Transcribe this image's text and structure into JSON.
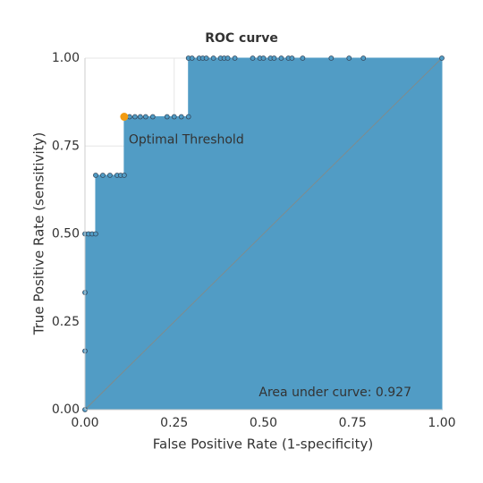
{
  "chart_data": {
    "type": "area",
    "title": "ROC curve",
    "x_label": "False Positive Rate (1-specificity)",
    "y_label": "True Positive Rate (sensitivity)",
    "x": [
      0,
      0,
      0,
      0,
      0.01,
      0.02,
      0.03,
      0.03,
      0.05,
      0.07,
      0.09,
      0.1,
      0.11,
      0.11,
      0.125,
      0.14,
      0.155,
      0.17,
      0.19,
      0.23,
      0.25,
      0.27,
      0.29,
      0.29,
      0.3,
      0.32,
      0.33,
      0.34,
      0.36,
      0.38,
      0.39,
      0.4,
      0.42,
      0.47,
      0.49,
      0.5,
      0.52,
      0.53,
      0.55,
      0.57,
      0.58,
      0.61,
      0.69,
      0.74,
      0.78,
      1
    ],
    "values": [
      0,
      0.1667,
      0.3333,
      0.5,
      0.5,
      0.5,
      0.5,
      0.6667,
      0.6667,
      0.6667,
      0.6667,
      0.6667,
      0.6667,
      0.8333,
      0.8333,
      0.8333,
      0.8333,
      0.8333,
      0.8333,
      0.8333,
      0.8333,
      0.8333,
      0.8333,
      1,
      1,
      1,
      1,
      1,
      1,
      1,
      1,
      1,
      1,
      1,
      1,
      1,
      1,
      1,
      1,
      1,
      1,
      1,
      1,
      1,
      1,
      1
    ],
    "color": "#519cc5",
    "optimal_point": {
      "x": 0.11,
      "y": 0.8333,
      "label": "Optimal Threshold",
      "color": "#f39c12"
    },
    "annotation": "Area under curve: 0.927",
    "xlim": [
      0,
      1
    ],
    "ylim": [
      0,
      1
    ],
    "xticks": [
      {
        "value": 0,
        "label": "0.00"
      },
      {
        "value": 0.25,
        "label": "0.25"
      },
      {
        "value": 0.5,
        "label": "0.50"
      },
      {
        "value": 0.75,
        "label": "0.75"
      },
      {
        "value": 1,
        "label": "1.00"
      }
    ],
    "yticks": [
      {
        "value": 0,
        "label": "0.00"
      },
      {
        "value": 0.25,
        "label": "0.25"
      },
      {
        "value": 0.5,
        "label": "0.50"
      },
      {
        "value": 0.75,
        "label": "0.75"
      },
      {
        "value": 1,
        "label": "1.00"
      }
    ],
    "grid": true
  }
}
